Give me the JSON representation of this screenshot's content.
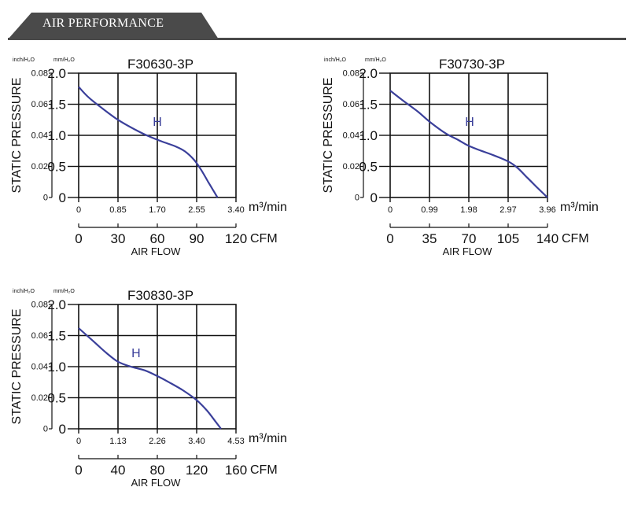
{
  "header": {
    "title": "AIR PERFORMANCE"
  },
  "axis_text": {
    "unit_inch": "inch/H₂O",
    "unit_mm": "mm/H₂O",
    "ylabel": "STATIC PRESSURE",
    "unit_m3": "m³/min",
    "unit_cfm": "CFM",
    "xlabel": "AIR FLOW"
  },
  "colors": {
    "curve": "#3a3f9a",
    "grid": "#111111",
    "header": "#4a4a4a"
  },
  "chart_data": [
    {
      "type": "line",
      "title": "F30630-3P",
      "xlabel": "AIR FLOW",
      "ylabel": "STATIC PRESSURE",
      "x_unit": "m³/min",
      "y_unit": "mm/H₂O",
      "xlim": [
        0,
        3.4
      ],
      "ylim": [
        0,
        2.0
      ],
      "m3_ticks": [
        "0",
        "0.85",
        "1.70",
        "2.55",
        "3.40"
      ],
      "cfm_ticks": [
        "0",
        "30",
        "60",
        "90",
        "120"
      ],
      "mm_ticks": [
        "0",
        "0.5",
        "1.0",
        "1.5",
        "2.0"
      ],
      "inch_ticks": [
        "0",
        "0.02",
        "0.04",
        "0.06",
        "0.08"
      ],
      "grid": true,
      "series": [
        {
          "name": "H",
          "label_at": [
            1.7,
            1.15
          ],
          "x": [
            0,
            0.2,
            0.5,
            0.85,
            1.2,
            1.5,
            1.8,
            2.1,
            2.3,
            2.5,
            2.65,
            2.8,
            2.92,
            3.0
          ],
          "y": [
            1.78,
            1.62,
            1.44,
            1.25,
            1.1,
            0.99,
            0.9,
            0.82,
            0.74,
            0.6,
            0.44,
            0.25,
            0.1,
            0.0
          ]
        }
      ]
    },
    {
      "type": "line",
      "title": "F30730-3P",
      "xlabel": "AIR FLOW",
      "ylabel": "STATIC PRESSURE",
      "x_unit": "m³/min",
      "y_unit": "mm/H₂O",
      "xlim": [
        0,
        3.96
      ],
      "ylim": [
        0,
        2.0
      ],
      "m3_ticks": [
        "0",
        "0.99",
        "1.98",
        "2.97",
        "3.96"
      ],
      "cfm_ticks": [
        "0",
        "35",
        "70",
        "105",
        "140"
      ],
      "mm_ticks": [
        "0",
        "0.5",
        "1.0",
        "1.5",
        "2.0"
      ],
      "inch_ticks": [
        "0",
        "0.02",
        "0.04",
        "0.06",
        "0.08"
      ],
      "grid": true,
      "series": [
        {
          "name": "H",
          "label_at": [
            2.0,
            1.15
          ],
          "x": [
            0,
            0.3,
            0.7,
            0.99,
            1.4,
            1.7,
            1.98,
            2.3,
            2.6,
            2.97,
            3.2,
            3.45,
            3.7,
            3.96
          ],
          "y": [
            1.72,
            1.57,
            1.38,
            1.22,
            1.03,
            0.93,
            0.83,
            0.75,
            0.68,
            0.58,
            0.48,
            0.32,
            0.16,
            0.0
          ]
        }
      ]
    },
    {
      "type": "line",
      "title": "F30830-3P",
      "xlabel": "AIR FLOW",
      "ylabel": "STATIC PRESSURE",
      "x_unit": "m³/min",
      "y_unit": "mm/H₂O",
      "xlim": [
        0,
        4.53
      ],
      "ylim": [
        0,
        2.0
      ],
      "m3_ticks": [
        "0",
        "1.13",
        "2.26",
        "3.40",
        "4.53"
      ],
      "cfm_ticks": [
        "0",
        "40",
        "80",
        "120",
        "160"
      ],
      "mm_ticks": [
        "0",
        "0.5",
        "1.0",
        "1.5",
        "2.0"
      ],
      "inch_ticks": [
        "0",
        "0.02",
        "0.04",
        "0.06",
        "0.08"
      ],
      "grid": true,
      "series": [
        {
          "name": "H",
          "label_at": [
            1.65,
            1.15
          ],
          "x": [
            0,
            0.4,
            0.8,
            1.13,
            1.5,
            1.9,
            2.26,
            2.6,
            3.0,
            3.4,
            3.7,
            3.95,
            4.1
          ],
          "y": [
            1.62,
            1.42,
            1.22,
            1.08,
            1.0,
            0.94,
            0.85,
            0.75,
            0.62,
            0.46,
            0.29,
            0.11,
            0.0
          ]
        }
      ]
    }
  ]
}
